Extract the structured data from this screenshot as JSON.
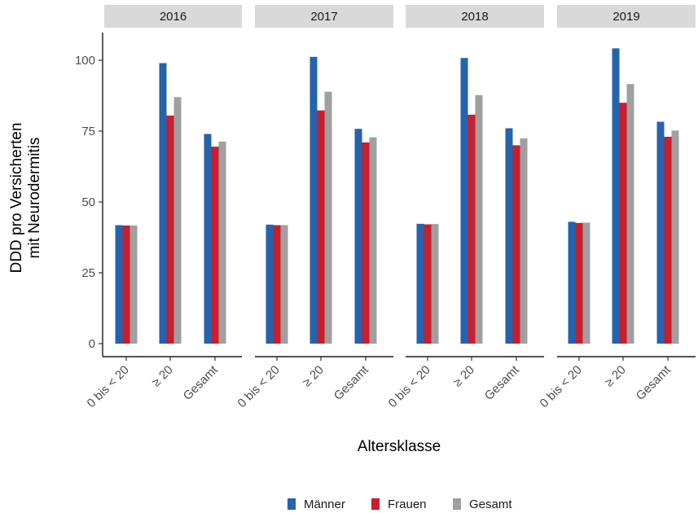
{
  "chart_data": {
    "type": "bar",
    "facets": [
      "2016",
      "2017",
      "2018",
      "2019"
    ],
    "categories": [
      "0 bis < 20",
      "≥ 20",
      "Gesamt"
    ],
    "series": [
      {
        "name": "Männer",
        "color": "#2563ad",
        "values": [
          [
            41.8,
            99.0,
            74.0
          ],
          [
            42.0,
            101.2,
            75.8
          ],
          [
            42.3,
            100.8,
            76.0
          ],
          [
            43.0,
            104.2,
            78.3
          ]
        ]
      },
      {
        "name": "Frauen",
        "color": "#c81e2d",
        "values": [
          [
            41.7,
            80.5,
            69.5
          ],
          [
            41.8,
            82.3,
            71.0
          ],
          [
            42.1,
            80.8,
            70.0
          ],
          [
            42.6,
            85.0,
            73.0
          ]
        ]
      },
      {
        "name": "Gesamt",
        "color": "#a0a0a0",
        "values": [
          [
            41.7,
            87.0,
            71.3
          ],
          [
            41.8,
            88.9,
            72.8
          ],
          [
            42.2,
            87.7,
            72.4
          ],
          [
            42.7,
            91.6,
            75.2
          ]
        ]
      }
    ],
    "ylim": [
      0,
      110
    ],
    "yticks": [
      0,
      25,
      50,
      75,
      100
    ],
    "xlabel": "Altersklasse",
    "ylabel_lines": [
      "DDD pro Versicherten",
      "mit Neurodermitis"
    ],
    "legend_position": "bottom",
    "grid": false
  }
}
